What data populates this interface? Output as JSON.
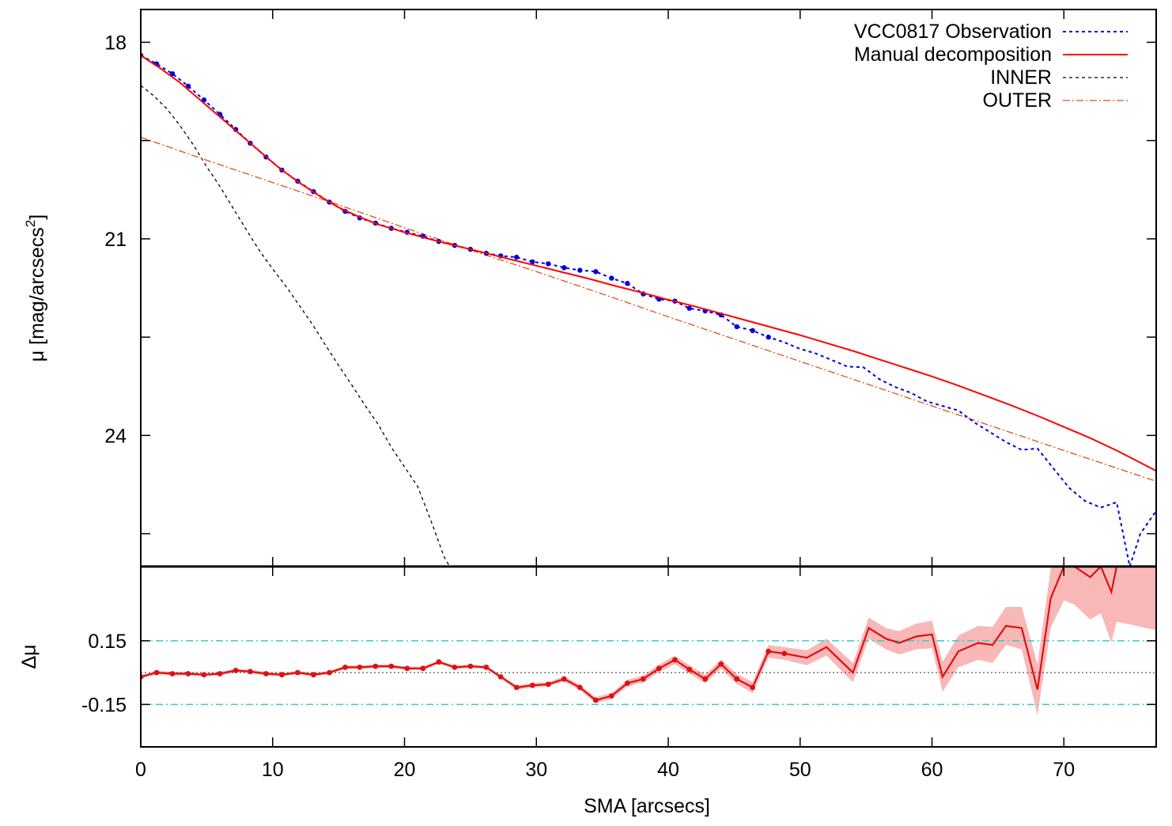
{
  "chart_data": [
    {
      "type": "line",
      "panel": "profile",
      "ylabel": "μ [mag/arcsecs",
      "ylabel_sup": "2",
      "ylabel_close": "]",
      "xlim": [
        0,
        77
      ],
      "ylim": [
        26,
        17.5
      ],
      "y_inverted": true,
      "yticks": [
        18,
        21,
        24
      ],
      "legend_position": "top-right",
      "colors": {
        "observation": "#0000dd",
        "manual": "#ff0000",
        "inner": "#000000",
        "outer": "#e0501c"
      },
      "series": [
        {
          "key": "observation",
          "name": "VCC0817 Observation",
          "style": "dotted",
          "markers_upto": 48,
          "x": [
            0,
            1.2,
            2.4,
            3.6,
            4.8,
            6,
            7.2,
            8.3,
            9.5,
            10.7,
            11.9,
            13.1,
            14.3,
            15.5,
            16.6,
            17.8,
            19,
            20.2,
            21.4,
            22.6,
            23.8,
            25,
            26.2,
            27.3,
            28.5,
            29.7,
            30.9,
            32.1,
            33.3,
            34.5,
            35.7,
            36.9,
            38.1,
            39.3,
            40.5,
            41.6,
            42.8,
            44,
            45.2,
            46.4,
            47.6,
            48.8,
            50,
            51.2,
            52.4,
            53.6,
            54.8,
            56,
            57.2,
            58.4,
            59.6,
            60.8,
            62,
            63.2,
            64.4,
            65.6,
            66.8,
            68,
            69.2,
            70.4,
            71.6,
            72.8,
            74,
            75,
            75.8,
            77
          ],
          "y": [
            18.2,
            18.33,
            18.48,
            18.67,
            18.88,
            19.1,
            19.33,
            19.54,
            19.75,
            19.95,
            20.12,
            20.28,
            20.44,
            20.58,
            20.68,
            20.76,
            20.84,
            20.9,
            20.96,
            21.04,
            21.1,
            21.16,
            21.22,
            21.26,
            21.28,
            21.35,
            21.38,
            21.44,
            21.48,
            21.5,
            21.6,
            21.68,
            21.84,
            21.92,
            21.95,
            22.06,
            22.1,
            22.16,
            22.34,
            22.4,
            22.5,
            22.58,
            22.68,
            22.75,
            22.85,
            22.95,
            22.96,
            23.14,
            23.26,
            23.35,
            23.48,
            23.55,
            23.62,
            23.8,
            23.95,
            24.1,
            24.22,
            24.2,
            24.5,
            24.8,
            25,
            25.1,
            25.02,
            26,
            25.5,
            25.15
          ]
        },
        {
          "key": "manual",
          "name": "Manual decomposition",
          "style": "solid",
          "x": [
            0,
            1.5,
            3,
            4.5,
            6,
            7.5,
            9,
            10.5,
            12,
            13.5,
            15,
            16.5,
            18,
            20,
            22,
            24,
            26,
            28,
            30,
            32,
            34,
            36,
            38,
            40,
            42,
            44,
            46,
            48,
            50,
            52,
            54,
            56,
            58,
            60,
            62,
            64,
            66,
            68,
            70,
            72,
            74,
            77
          ],
          "y": [
            18.2,
            18.4,
            18.62,
            18.88,
            19.14,
            19.4,
            19.66,
            19.92,
            20.14,
            20.34,
            20.52,
            20.66,
            20.78,
            20.9,
            21.01,
            21.11,
            21.21,
            21.31,
            21.41,
            21.51,
            21.61,
            21.72,
            21.82,
            21.93,
            22.03,
            22.14,
            22.25,
            22.36,
            22.47,
            22.59,
            22.71,
            22.84,
            22.97,
            23.1,
            23.24,
            23.39,
            23.54,
            23.7,
            23.87,
            24.04,
            24.23,
            24.54
          ]
        },
        {
          "key": "inner",
          "name": "INNER",
          "style": "dashed",
          "x": [
            0,
            1,
            2,
            3,
            4,
            5,
            6,
            7,
            8,
            9,
            10,
            11,
            12,
            13,
            14,
            15,
            16,
            17,
            18,
            19,
            20,
            21,
            22,
            23,
            24,
            25
          ],
          "y": [
            18.66,
            18.82,
            19.02,
            19.28,
            19.57,
            19.9,
            20.2,
            20.53,
            20.86,
            21.18,
            21.46,
            21.72,
            22.01,
            22.3,
            22.62,
            22.93,
            23.23,
            23.54,
            23.83,
            24.18,
            24.48,
            24.78,
            25.3,
            25.85,
            26.2,
            26.7
          ]
        },
        {
          "key": "outer",
          "name": "OUTER",
          "style": "dash-dot",
          "x": [
            0,
            5,
            10,
            15,
            20,
            25,
            30,
            35,
            40,
            45,
            50,
            55,
            60,
            65,
            70,
            77
          ],
          "y": [
            19.45,
            19.8,
            20.14,
            20.48,
            20.83,
            21.17,
            21.5,
            21.84,
            22.19,
            22.53,
            22.87,
            23.21,
            23.55,
            23.89,
            24.23,
            24.7
          ]
        }
      ]
    },
    {
      "type": "line",
      "panel": "residual",
      "xlabel": "SMA [arcsecs]",
      "ylabel": "Δμ",
      "xlim": [
        0,
        77
      ],
      "ylim": [
        -0.35,
        0.5
      ],
      "xticks": [
        0,
        10,
        20,
        30,
        40,
        50,
        60,
        70
      ],
      "yticks": [
        0.15,
        -0.15
      ],
      "ytick_labels": [
        "0.15",
        "-0.15"
      ],
      "reference_lines": [
        0.15,
        0,
        -0.15
      ],
      "colors": {
        "residual": "#e01010",
        "error_band": "#f8b8b8",
        "limit_lines": "#33cccc",
        "zero_line": "#555555"
      },
      "series": [
        {
          "key": "residual",
          "x": [
            0,
            1.2,
            2.4,
            3.6,
            4.8,
            6,
            7.2,
            8.3,
            9.5,
            10.7,
            11.9,
            13.1,
            14.3,
            15.5,
            16.6,
            17.8,
            19,
            20.2,
            21.4,
            22.6,
            23.8,
            25,
            26.2,
            27.3,
            28.5,
            29.7,
            30.9,
            32.1,
            33.3,
            34.5,
            35.7,
            36.9,
            38.1,
            39.3,
            40.5,
            41.6,
            42.8,
            44,
            45.2,
            46.4,
            47.6,
            48.8
          ],
          "y": [
            -0.02,
            0,
            -0.005,
            -0.005,
            -0.01,
            -0.005,
            0.01,
            0.005,
            -0.005,
            -0.01,
            0,
            -0.01,
            0,
            0.025,
            0.025,
            0.03,
            0.03,
            0.02,
            0.02,
            0.05,
            0.025,
            0.03,
            0.025,
            -0.02,
            -0.07,
            -0.06,
            -0.055,
            -0.03,
            -0.07,
            -0.13,
            -0.11,
            -0.05,
            -0.03,
            0.02,
            0.06,
            0.015,
            -0.03,
            0.04,
            -0.03,
            -0.07,
            0.1,
            0.09
          ],
          "x_line": [
            0,
            1.2,
            2.4,
            3.6,
            4.8,
            6,
            7.2,
            8.3,
            9.5,
            10.7,
            11.9,
            13.1,
            14.3,
            15.5,
            16.6,
            17.8,
            19,
            20.2,
            21.4,
            22.6,
            23.8,
            25,
            26.2,
            27.3,
            28.5,
            29.7,
            30.9,
            32.1,
            33.3,
            34.5,
            35.7,
            36.9,
            38.1,
            39.3,
            40.5,
            41.6,
            42.8,
            44,
            45.2,
            46.4,
            47.6,
            48.8,
            50.5,
            52,
            54,
            55.2,
            56.5,
            57.5,
            58.8,
            60,
            60.8,
            62,
            63.5,
            64.6,
            65.6,
            66.8,
            68,
            69,
            70,
            70.8,
            72,
            72.8,
            73.6,
            74,
            77
          ],
          "y_line": [
            -0.02,
            0,
            -0.005,
            -0.005,
            -0.01,
            -0.005,
            0.01,
            0.005,
            -0.005,
            -0.01,
            0,
            -0.01,
            0,
            0.025,
            0.025,
            0.03,
            0.03,
            0.02,
            0.02,
            0.05,
            0.025,
            0.03,
            0.025,
            -0.02,
            -0.07,
            -0.06,
            -0.055,
            -0.03,
            -0.07,
            -0.13,
            -0.11,
            -0.05,
            -0.03,
            0.02,
            0.06,
            0.015,
            -0.03,
            0.04,
            -0.03,
            -0.07,
            0.1,
            0.09,
            0.07,
            0.12,
            0,
            0.21,
            0.16,
            0.14,
            0.17,
            0.18,
            -0.02,
            0.1,
            0.14,
            0.13,
            0.22,
            0.21,
            -0.08,
            0.35,
            0.5,
            0.5,
            0.45,
            0.5,
            0.38,
            0.5,
            0.5
          ],
          "band_halfwidth": [
            0.008,
            0.008,
            0.008,
            0.008,
            0.008,
            0.008,
            0.008,
            0.008,
            0.008,
            0.008,
            0.008,
            0.008,
            0.008,
            0.008,
            0.008,
            0.008,
            0.008,
            0.008,
            0.008,
            0.008,
            0.008,
            0.008,
            0.008,
            0.008,
            0.01,
            0.01,
            0.01,
            0.012,
            0.012,
            0.014,
            0.014,
            0.016,
            0.016,
            0.018,
            0.02,
            0.02,
            0.02,
            0.022,
            0.024,
            0.026,
            0.03,
            0.03,
            0.035,
            0.04,
            0.045,
            0.05,
            0.05,
            0.055,
            0.06,
            0.065,
            0.07,
            0.075,
            0.08,
            0.085,
            0.09,
            0.1,
            0.12,
            0.14,
            0.16,
            0.18,
            0.2,
            0.22,
            0.24,
            0.26,
            0.3
          ]
        }
      ]
    }
  ]
}
